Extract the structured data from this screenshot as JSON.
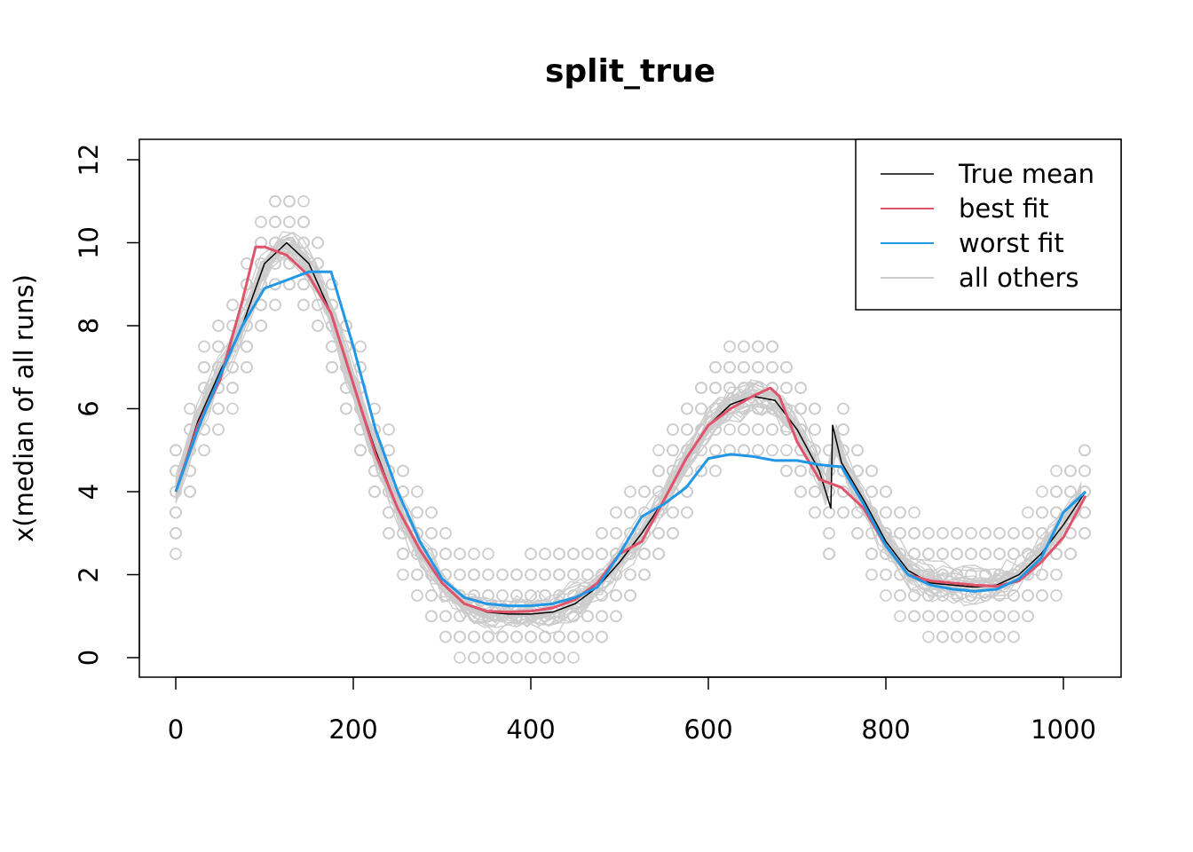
{
  "chart_data": {
    "type": "line",
    "title": "split_true",
    "xlabel": "",
    "ylabel": "x(median of all runs)",
    "xlim": [
      -10,
      1035
    ],
    "ylim": [
      -0.5,
      12.5
    ],
    "x_ticks": [
      0,
      200,
      400,
      600,
      800,
      1000
    ],
    "x_tick_labels": [
      "0",
      "200",
      "400",
      "600",
      "800",
      "1000"
    ],
    "y_ticks": [
      0,
      2,
      4,
      6,
      8,
      10,
      12
    ],
    "y_tick_labels": [
      "0",
      "2",
      "4",
      "6",
      "8",
      "10",
      "12"
    ],
    "grid": false,
    "legend": {
      "position": "top-right",
      "entries": [
        {
          "label": "True mean",
          "color": "#000000"
        },
        {
          "label": "best fit",
          "color": "#DF536B"
        },
        {
          "label": "worst fit",
          "color": "#2297E6"
        },
        {
          "label": "all others",
          "color": "#CCCCCC"
        }
      ]
    },
    "series": [
      {
        "name": "True mean",
        "color": "#000000",
        "x": [
          0,
          25,
          50,
          75,
          100,
          125,
          150,
          175,
          200,
          225,
          250,
          275,
          300,
          325,
          350,
          375,
          400,
          425,
          450,
          475,
          500,
          525,
          550,
          575,
          600,
          625,
          650,
          675,
          700,
          725,
          738,
          740,
          750,
          775,
          800,
          825,
          850,
          875,
          900,
          925,
          950,
          975,
          1000,
          1025
        ],
        "y": [
          4.0,
          5.7,
          6.9,
          8.0,
          9.5,
          10.0,
          9.5,
          8.3,
          6.6,
          5.0,
          3.6,
          2.6,
          1.8,
          1.3,
          1.1,
          1.05,
          1.05,
          1.1,
          1.3,
          1.7,
          2.3,
          3.0,
          3.8,
          4.8,
          5.6,
          6.1,
          6.3,
          6.2,
          5.5,
          4.5,
          3.6,
          5.6,
          4.7,
          3.8,
          2.8,
          2.1,
          1.8,
          1.75,
          1.7,
          1.75,
          2.0,
          2.5,
          3.2,
          4.0
        ]
      },
      {
        "name": "best fit",
        "color": "#DF536B",
        "x": [
          0,
          25,
          50,
          75,
          90,
          100,
          125,
          150,
          175,
          200,
          225,
          250,
          275,
          300,
          325,
          350,
          375,
          400,
          425,
          450,
          475,
          500,
          525,
          550,
          575,
          600,
          625,
          650,
          670,
          680,
          700,
          725,
          750,
          775,
          800,
          825,
          850,
          875,
          900,
          925,
          950,
          975,
          1000,
          1025
        ],
        "y": [
          4.0,
          5.6,
          6.7,
          8.6,
          9.9,
          9.9,
          9.7,
          9.2,
          8.3,
          6.6,
          4.9,
          3.6,
          2.6,
          1.8,
          1.3,
          1.12,
          1.1,
          1.12,
          1.2,
          1.4,
          1.8,
          2.5,
          2.8,
          3.8,
          4.8,
          5.6,
          6.0,
          6.3,
          6.5,
          6.3,
          5.2,
          4.3,
          4.1,
          3.6,
          2.7,
          2.0,
          1.85,
          1.8,
          1.75,
          1.72,
          1.85,
          2.3,
          2.9,
          3.9
        ]
      },
      {
        "name": "worst fit",
        "color": "#2297E6",
        "x": [
          0,
          25,
          50,
          75,
          100,
          125,
          150,
          175,
          200,
          225,
          250,
          275,
          300,
          325,
          350,
          375,
          400,
          425,
          450,
          475,
          500,
          525,
          550,
          575,
          600,
          625,
          650,
          675,
          700,
          725,
          750,
          775,
          800,
          825,
          850,
          875,
          900,
          925,
          950,
          975,
          1000,
          1025
        ],
        "y": [
          4.0,
          5.5,
          6.8,
          8.0,
          8.9,
          9.1,
          9.3,
          9.3,
          7.5,
          5.5,
          4.0,
          2.8,
          1.9,
          1.45,
          1.3,
          1.25,
          1.25,
          1.3,
          1.45,
          1.7,
          2.5,
          3.4,
          3.7,
          4.1,
          4.8,
          4.9,
          4.85,
          4.75,
          4.75,
          4.65,
          4.6,
          3.7,
          2.7,
          2.0,
          1.75,
          1.65,
          1.6,
          1.65,
          1.9,
          2.4,
          3.5,
          4.0
        ]
      }
    ],
    "others": {
      "name": "all others",
      "color": "#CCCCCC",
      "count": 30
    }
  }
}
